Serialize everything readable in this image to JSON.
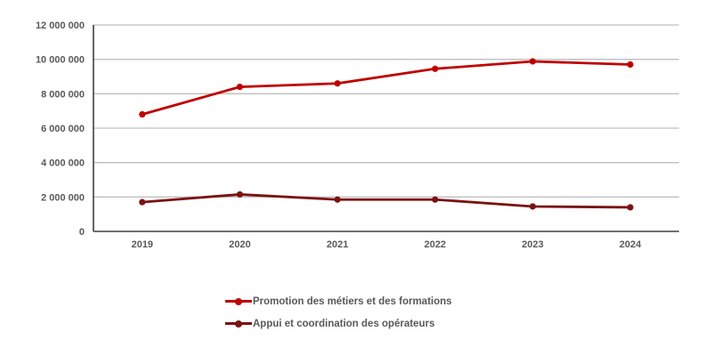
{
  "chart_data": {
    "type": "line",
    "title": "",
    "xlabel": "",
    "ylabel": "",
    "categories": [
      "2019",
      "2020",
      "2021",
      "2022",
      "2023",
      "2024"
    ],
    "series": [
      {
        "name": "Promotion des métiers et des formations",
        "color": "#C00000",
        "values": [
          6800000,
          8400000,
          8600000,
          9450000,
          9880000,
          9700000
        ]
      },
      {
        "name": "Appui et coordination des opérateurs",
        "color": "#7B1212",
        "values": [
          1700000,
          2150000,
          1850000,
          1850000,
          1450000,
          1400000
        ]
      }
    ],
    "ylim": [
      0,
      12000000
    ],
    "y_ticks": [
      0,
      2000000,
      4000000,
      6000000,
      8000000,
      10000000,
      12000000
    ],
    "y_tick_labels": [
      "0",
      "2 000 000",
      "4 000 000",
      "6 000 000",
      "8 000 000",
      "10 000 000",
      "12 000 000"
    ],
    "grid": true,
    "legend_position": "bottom",
    "marker": "circle"
  },
  "styles": {
    "background": "#FFFFFF",
    "axis_color": "#404040",
    "grid_color": "#BFBFBF",
    "label_color": "#595959"
  }
}
